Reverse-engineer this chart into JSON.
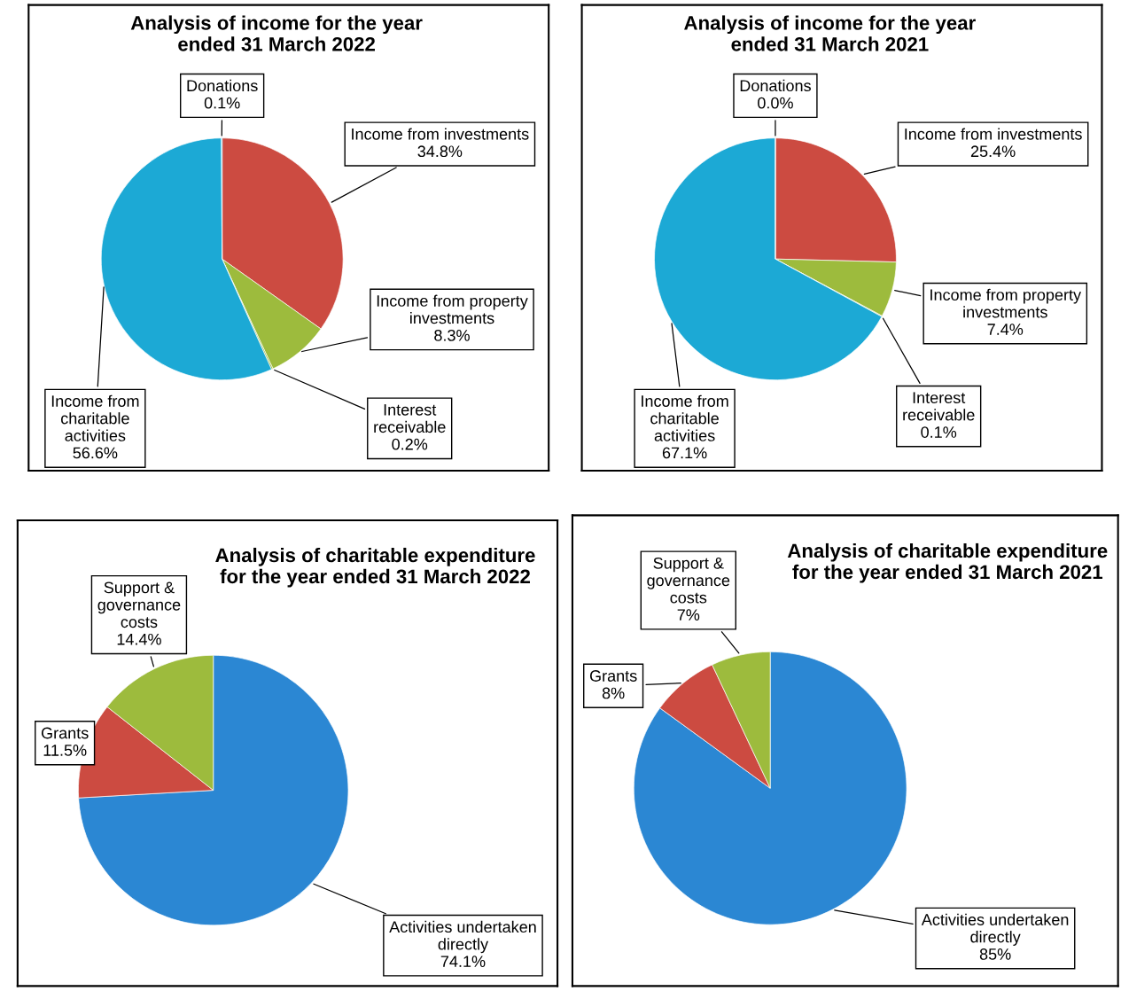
{
  "chart_data": [
    {
      "type": "pie",
      "title": "Analysis of income for the year\nended 31 March 2022",
      "categories": [
        "Income from investments",
        "Income from property\ninvestments",
        "Interest\nreceivable",
        "Income from\ncharitable\nactivities",
        "Donations"
      ],
      "values": [
        34.8,
        8.3,
        0.2,
        56.6,
        0.1
      ],
      "value_labels": [
        "34.8%",
        "8.3%",
        "0.2%",
        "56.6%",
        "0.1%"
      ],
      "colors": [
        "#cc4b41",
        "#9dbb3d",
        "#9dbb3d",
        "#1ca9d5",
        "#1ca9d5"
      ]
    },
    {
      "type": "pie",
      "title": "Analysis of income for the year\nended 31 March 2021",
      "categories": [
        "Income from investments",
        "Income from property\ninvestments",
        "Interest\nreceivable",
        "Income from\ncharitable\nactivities",
        "Donations"
      ],
      "values": [
        25.4,
        7.4,
        0.1,
        67.1,
        0.0
      ],
      "value_labels": [
        "25.4%",
        "7.4%",
        "0.1%",
        "67.1%",
        "0.0%"
      ],
      "colors": [
        "#cc4b41",
        "#9dbb3d",
        "#9dbb3d",
        "#1ca9d5",
        "#1ca9d5"
      ]
    },
    {
      "type": "pie",
      "title": "Analysis of charitable expenditure\nfor the year ended 31 March 2022",
      "categories": [
        "Activities undertaken\ndirectly",
        "Grants",
        "Support &\ngovernance\ncosts"
      ],
      "values": [
        74.1,
        11.5,
        14.4
      ],
      "value_labels": [
        "74.1%",
        "11.5%",
        "14.4%"
      ],
      "colors": [
        "#2b87d3",
        "#cc4b41",
        "#9dbb3d"
      ]
    },
    {
      "type": "pie",
      "title": "Analysis of charitable expenditure\nfor the year ended 31 March 2021",
      "categories": [
        "Activities undertaken\ndirectly",
        "Grants",
        "Support &\ngovernance\ncosts"
      ],
      "values": [
        85,
        8,
        7
      ],
      "value_labels": [
        "85%",
        "8%",
        "7%"
      ],
      "colors": [
        "#2b87d3",
        "#cc4b41",
        "#9dbb3d"
      ]
    }
  ]
}
